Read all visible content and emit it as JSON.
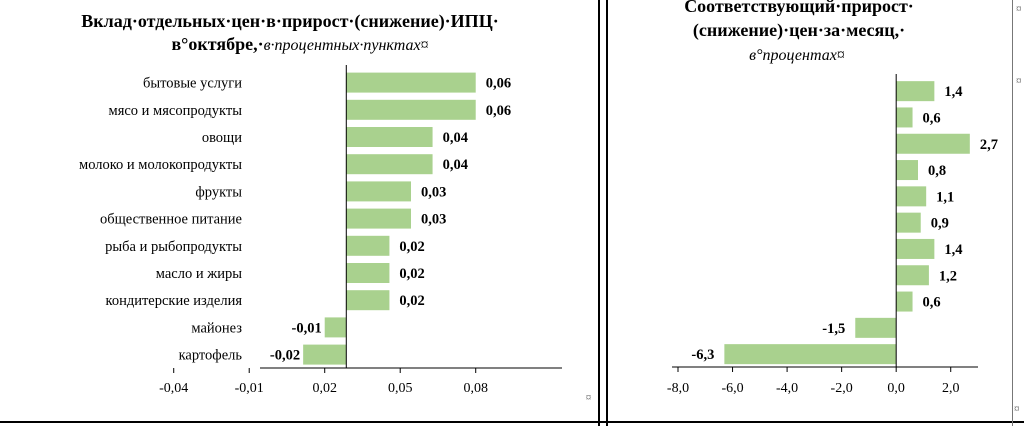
{
  "chart_data": [
    {
      "type": "bar",
      "orientation": "horizontal",
      "title": "Вклад·отдельных·цен·в·прирост·(снижение)·ИПЦ·",
      "title_line2": "в°октябре,·",
      "subtitle": "в·процентных·пунктах¤",
      "categories": [
        "бытовые услуги",
        "мясо и мясопродукты",
        "овощи",
        "молоко и молокопродукты",
        "фрукты",
        "общественное питание",
        "рыба и рыбопродукты",
        "масло и жиры",
        "кондитерские изделия",
        "майонез",
        "картофель"
      ],
      "values": [
        0.06,
        0.06,
        0.04,
        0.04,
        0.03,
        0.03,
        0.02,
        0.02,
        0.02,
        -0.01,
        -0.02
      ],
      "value_labels": [
        "0,06",
        "0,06",
        "0,04",
        "0,04",
        "0,03",
        "0,03",
        "0,02",
        "0,02",
        "0,02",
        "-0,01",
        "-0,02"
      ],
      "xlim": [
        -0.04,
        0.1
      ],
      "xticks": [
        "-0,04",
        "-0,01",
        "0,02",
        "0,05",
        "0,08"
      ],
      "bar_color": "#a9d18e",
      "grid": false
    },
    {
      "type": "bar",
      "orientation": "horizontal",
      "title": "Соответствующий·прирост·",
      "title_line2": "(снижение)·цен·за·месяц,·",
      "subtitle": "в°процентах¤",
      "values": [
        1.4,
        0.6,
        2.7,
        0.8,
        1.1,
        0.9,
        1.4,
        1.2,
        0.6,
        -1.5,
        -6.3
      ],
      "value_labels": [
        "1,4",
        "0,6",
        "2,7",
        "0,8",
        "1,1",
        "0,9",
        "1,4",
        "1,2",
        "0,6",
        "-1,5",
        "-6,3"
      ],
      "xlim": [
        -8.0,
        3.0
      ],
      "xticks": [
        "-8,0",
        "-6,0",
        "-4,0",
        "-2,0",
        "0,0",
        "2,0"
      ],
      "bar_color": "#a9d18e",
      "grid": false
    }
  ],
  "marks": {
    "left_para": "¤",
    "right_top": "¤",
    "right_mid": "¤",
    "right_bottom": "¤"
  }
}
